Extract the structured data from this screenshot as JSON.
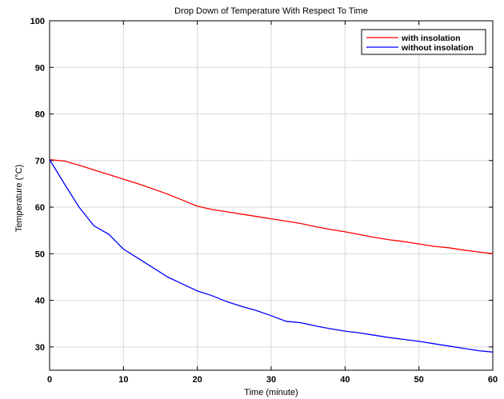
{
  "chart_data": {
    "type": "line",
    "title": "Drop Down of Temperature With Respect To Time",
    "xlabel": "Time (minute)",
    "ylabel": "Temperature (°C)",
    "xlim": [
      0,
      60
    ],
    "ylim": [
      25,
      100
    ],
    "x_ticks": [
      "0",
      "10",
      "20",
      "30",
      "40",
      "50",
      "60"
    ],
    "y_ticks": [
      "30",
      "40",
      "50",
      "60",
      "70",
      "80",
      "90",
      "100"
    ],
    "grid": true,
    "legend_position": "top-right",
    "series": [
      {
        "name": "with insolation",
        "color": "#ff0000",
        "x": [
          0,
          2,
          4,
          6,
          8,
          10,
          12,
          14,
          16,
          18,
          20,
          22,
          24,
          26,
          28,
          30,
          32,
          34,
          36,
          38,
          40,
          42,
          44,
          46,
          48,
          50,
          52,
          54,
          56,
          58,
          60
        ],
        "y": [
          70.2,
          69.9,
          69.0,
          68.0,
          67.0,
          66.0,
          65.0,
          63.9,
          62.8,
          61.5,
          60.2,
          59.5,
          59.0,
          58.5,
          58.0,
          57.5,
          57.0,
          56.5,
          55.8,
          55.2,
          54.7,
          54.1,
          53.5,
          53.0,
          52.6,
          52.1,
          51.6,
          51.3,
          50.8,
          50.4,
          50.0
        ]
      },
      {
        "name": "without insolation",
        "color": "#0000ff",
        "x": [
          0,
          2,
          4,
          6,
          8,
          10,
          12,
          14,
          16,
          18,
          20,
          22,
          24,
          26,
          28,
          30,
          32,
          34,
          36,
          38,
          40,
          42,
          44,
          46,
          48,
          50,
          52,
          54,
          56,
          58,
          60
        ],
        "y": [
          70.2,
          65.0,
          60.0,
          56.0,
          54.2,
          51.0,
          49.0,
          47.0,
          45.0,
          43.5,
          42.0,
          41.0,
          39.7,
          38.7,
          37.8,
          36.7,
          35.5,
          35.2,
          34.5,
          33.9,
          33.4,
          33.0,
          32.5,
          32.0,
          31.6,
          31.2,
          30.7,
          30.2,
          29.7,
          29.2,
          28.9
        ]
      }
    ]
  }
}
